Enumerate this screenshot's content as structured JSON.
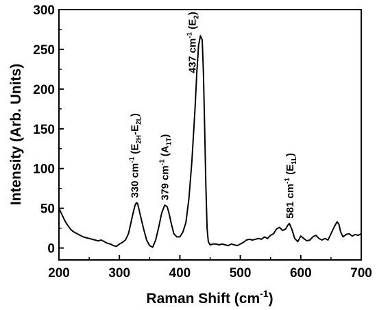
{
  "chart_data": {
    "type": "line",
    "title": "",
    "xlabel_main": "Raman Shift (cm",
    "xlabel_sup": "-1",
    "xlabel_end": ")",
    "ylabel": "Intensity (Arb. Units)",
    "xlim": [
      200,
      700
    ],
    "ylim": [
      -15,
      300
    ],
    "xticks": [
      "200",
      "300",
      "400",
      "500",
      "600",
      "700"
    ],
    "yticks": [
      "0",
      "50",
      "100",
      "150",
      "200",
      "250",
      "300"
    ],
    "xtick_values": [
      200,
      300,
      400,
      500,
      600,
      700
    ],
    "ytick_values": [
      0,
      50,
      100,
      150,
      200,
      250,
      300
    ],
    "line_color": "#000000",
    "series": [
      {
        "x": [
          200,
          205,
          210,
          215,
          220,
          225,
          230,
          235,
          240,
          245,
          250,
          255,
          260,
          265,
          270,
          275,
          280,
          285,
          290,
          295,
          300,
          305,
          310,
          315,
          318,
          322,
          326,
          328,
          330,
          332,
          335,
          340,
          345,
          350,
          355,
          360,
          365,
          370,
          375,
          379,
          382,
          386,
          390,
          395,
          400,
          405,
          410,
          415,
          420,
          425,
          428,
          431,
          434,
          437,
          439,
          441,
          443,
          445,
          447,
          450,
          455,
          460,
          465,
          470,
          475,
          480,
          485,
          490,
          495,
          500,
          505,
          510,
          515,
          520,
          525,
          530,
          535,
          540,
          545,
          550,
          555,
          560,
          565,
          570,
          575,
          578,
          581,
          585,
          590,
          595,
          600,
          605,
          610,
          615,
          620,
          625,
          630,
          635,
          640,
          645,
          650,
          655,
          660,
          663,
          666,
          670,
          675,
          680,
          685,
          690,
          695,
          700
        ],
        "y": [
          50,
          42,
          34,
          28,
          23,
          20,
          18,
          16,
          14,
          13,
          12,
          11,
          10,
          9,
          10,
          8,
          6,
          5,
          3,
          2,
          5,
          7,
          10,
          18,
          28,
          42,
          54,
          57,
          56,
          50,
          40,
          24,
          10,
          3,
          1,
          10,
          26,
          44,
          54,
          52,
          44,
          30,
          18,
          14,
          14,
          20,
          32,
          62,
          110,
          175,
          220,
          255,
          267,
          262,
          220,
          150,
          80,
          25,
          8,
          4,
          5,
          5,
          4,
          5,
          4,
          3,
          5,
          4,
          3,
          5,
          7,
          10,
          11,
          10,
          11,
          12,
          11,
          14,
          12,
          16,
          18,
          24,
          26,
          22,
          24,
          28,
          31,
          24,
          12,
          8,
          15,
          12,
          9,
          10,
          14,
          16,
          12,
          10,
          12,
          10,
          18,
          26,
          33,
          30,
          20,
          14,
          17,
          18,
          15,
          17,
          16,
          18
        ]
      }
    ],
    "annotations": [
      {
        "x": 331,
        "y": 63,
        "main": "330 cm",
        "sup": "-1",
        "mid": " (E",
        "sub": "2H",
        "mid2": "-E",
        "sub2": "2L",
        "end": ")"
      },
      {
        "x": 381,
        "y": 60,
        "main": "379 cm",
        "sup": "-1",
        "mid": " (A",
        "sub": "1T",
        "mid2": "",
        "sub2": "",
        "end": ")"
      },
      {
        "x": 426,
        "y": 220,
        "main": "437 cm",
        "sup": "-1",
        "mid": " (E",
        "sub": "2",
        "mid2": "",
        "sub2": "",
        "end": ")"
      },
      {
        "x": 588,
        "y": 37,
        "main": "581 cm",
        "sup": "-1",
        "mid": " (E",
        "sub": "1L",
        "mid2": "",
        "sub2": "",
        "end": ")"
      }
    ]
  }
}
